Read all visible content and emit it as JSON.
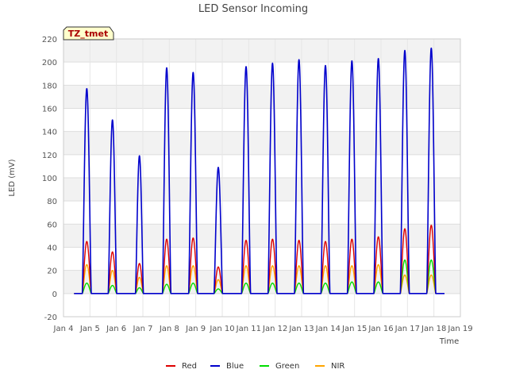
{
  "chart_data": {
    "type": "line",
    "title": "LED Sensor Incoming",
    "xlabel": "Time",
    "ylabel": "LED (mV)",
    "badge": "TZ_tmet",
    "xlim": [
      4,
      19
    ],
    "ylim": [
      -20,
      220
    ],
    "xticks": [
      {
        "value": 4,
        "label": "Jan 4"
      },
      {
        "value": 5,
        "label": "Jan 5"
      },
      {
        "value": 6,
        "label": "Jan 6"
      },
      {
        "value": 7,
        "label": "Jan 7"
      },
      {
        "value": 8,
        "label": "Jan 8"
      },
      {
        "value": 9,
        "label": "Jan 9"
      },
      {
        "value": 10,
        "label": "Jan 10"
      },
      {
        "value": 11,
        "label": "Jan 11"
      },
      {
        "value": 12,
        "label": "Jan 12"
      },
      {
        "value": 13,
        "label": "Jan 13"
      },
      {
        "value": 14,
        "label": "Jan 14"
      },
      {
        "value": 15,
        "label": "Jan 15"
      },
      {
        "value": 16,
        "label": "Jan 16"
      },
      {
        "value": 17,
        "label": "Jan 17"
      },
      {
        "value": 18,
        "label": "Jan 18"
      },
      {
        "value": 19,
        "label": "Jan 19"
      }
    ],
    "yticks": [
      -20,
      0,
      20,
      40,
      60,
      80,
      100,
      120,
      140,
      160,
      180,
      200,
      220
    ],
    "grid": true,
    "legend_position": "bottom-center",
    "series_x_start": 4.4,
    "series_x_end": 18.4,
    "day_peaks": [
      {
        "center": 4.88,
        "half_width": 0.17,
        "blue": 177,
        "red": 45,
        "green": 9,
        "nir": 25
      },
      {
        "center": 5.85,
        "half_width": 0.16,
        "blue": 150,
        "red": 36,
        "green": 7,
        "nir": 20
      },
      {
        "center": 6.87,
        "half_width": 0.15,
        "blue": 119,
        "red": 26,
        "green": 5,
        "nir": 14
      },
      {
        "center": 7.9,
        "half_width": 0.16,
        "blue": 195,
        "red": 47,
        "green": 8,
        "nir": 24
      },
      {
        "center": 8.9,
        "half_width": 0.17,
        "blue": 191,
        "red": 48,
        "green": 9,
        "nir": 24
      },
      {
        "center": 9.85,
        "half_width": 0.16,
        "blue": 109,
        "red": 23,
        "green": 4,
        "nir": 12
      },
      {
        "center": 10.9,
        "half_width": 0.17,
        "blue": 196,
        "red": 46,
        "green": 9,
        "nir": 24
      },
      {
        "center": 11.9,
        "half_width": 0.17,
        "blue": 199,
        "red": 47,
        "green": 9,
        "nir": 24
      },
      {
        "center": 12.9,
        "half_width": 0.17,
        "blue": 202,
        "red": 46,
        "green": 9,
        "nir": 24
      },
      {
        "center": 13.9,
        "half_width": 0.17,
        "blue": 197,
        "red": 45,
        "green": 9,
        "nir": 24
      },
      {
        "center": 14.9,
        "half_width": 0.17,
        "blue": 201,
        "red": 47,
        "green": 10,
        "nir": 24
      },
      {
        "center": 15.9,
        "half_width": 0.17,
        "blue": 203,
        "red": 49,
        "green": 10,
        "nir": 25
      },
      {
        "center": 16.9,
        "half_width": 0.17,
        "blue": 210,
        "red": 56,
        "green": 29,
        "nir": 16
      },
      {
        "center": 17.9,
        "half_width": 0.17,
        "blue": 212,
        "red": 59,
        "green": 29,
        "nir": 16
      }
    ],
    "series": [
      {
        "name": "Red",
        "key": "red",
        "color": "#dd0000"
      },
      {
        "name": "Blue",
        "key": "blue",
        "color": "#0000cc"
      },
      {
        "name": "Green",
        "key": "green",
        "color": "#00dd00"
      },
      {
        "name": "NIR",
        "key": "nir",
        "color": "#ffa500"
      }
    ]
  }
}
